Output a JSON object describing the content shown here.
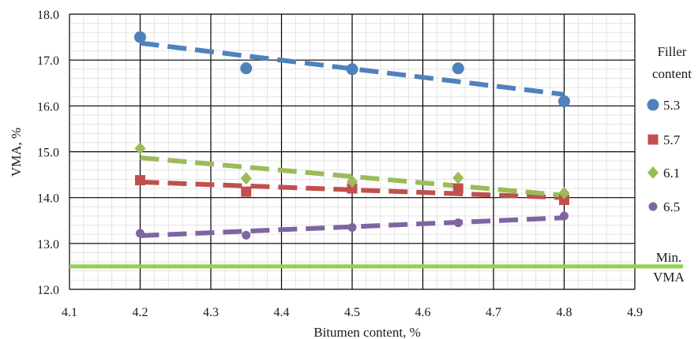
{
  "chart_data": {
    "type": "scatter",
    "xlabel": "Bitumen content, %",
    "ylabel": "VMA, %",
    "xlim": [
      4.1,
      4.9
    ],
    "ylim": [
      12.0,
      18.0
    ],
    "x_ticks": [
      "4.1",
      "4.2",
      "4.3",
      "4.4",
      "4.5",
      "4.6",
      "4.7",
      "4.8",
      "4.9"
    ],
    "y_ticks": [
      "12.0",
      "13.0",
      "14.0",
      "15.0",
      "16.0",
      "17.0",
      "18.0"
    ],
    "grid": true,
    "legend_position": "right",
    "legend_title": [
      "Filler",
      "content"
    ],
    "series": [
      {
        "name": "5.3",
        "color": "#4f81bd",
        "marker": "circle",
        "x": [
          4.2,
          4.35,
          4.5,
          4.65,
          4.8
        ],
        "y": [
          17.5,
          16.82,
          16.8,
          16.82,
          16.1
        ],
        "trend": [
          17.37,
          16.25
        ]
      },
      {
        "name": "5.7",
        "color": "#c0504d",
        "marker": "square",
        "x": [
          4.2,
          4.35,
          4.5,
          4.65,
          4.8
        ],
        "y": [
          14.38,
          14.13,
          14.2,
          14.2,
          13.95
        ],
        "trend": [
          14.34,
          14.0
        ]
      },
      {
        "name": "6.1",
        "color": "#9bbb59",
        "marker": "diamond",
        "x": [
          4.2,
          4.35,
          4.5,
          4.65,
          4.8
        ],
        "y": [
          15.07,
          14.42,
          14.35,
          14.43,
          14.1
        ],
        "trend": [
          14.87,
          14.05
        ]
      },
      {
        "name": "6.5",
        "color": "#8064a2",
        "marker": "circle-small",
        "x": [
          4.2,
          4.35,
          4.5,
          4.65,
          4.8
        ],
        "y": [
          13.22,
          13.18,
          13.35,
          13.45,
          13.6
        ],
        "trend": [
          13.17,
          13.56
        ]
      }
    ],
    "reference_line": {
      "name": [
        "Min.",
        "VMA"
      ],
      "y": 12.5,
      "color": "#92d050"
    }
  }
}
